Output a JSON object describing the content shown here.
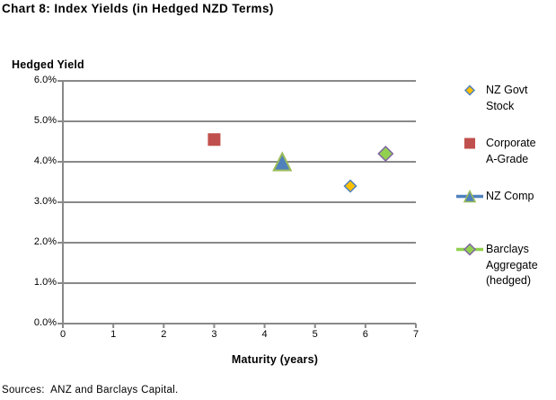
{
  "source_note": "Sources:  ANZ and Barclays Capital.",
  "chart_data": {
    "type": "scatter",
    "title": "Chart 8: Index Yields (in Hedged NZD Terms)",
    "ylabel": "Hedged Yield",
    "xlabel": "Maturity (years)",
    "xlim": [
      0,
      7
    ],
    "ylim": [
      0,
      6
    ],
    "y_units": "percent",
    "xtick_labels": [
      "0",
      "1",
      "2",
      "3",
      "4",
      "5",
      "6",
      "7"
    ],
    "ytick_labels": [
      "0.0%",
      "1.0%",
      "2.0%",
      "3.0%",
      "4.0%",
      "5.0%",
      "6.0%"
    ],
    "grid": "horizontal",
    "legend_position": "right",
    "axis_color": "#898989",
    "series": [
      {
        "name": "NZ Govt Stock",
        "legend_lines": [
          "NZ Govt",
          "Stock"
        ],
        "marker": "diamond",
        "marker_fill": "#FFC000",
        "marker_stroke": "#4F81BD",
        "marker_size": 13,
        "legend_marker_size": 10,
        "show_line": false,
        "line_color": "",
        "points": [
          {
            "maturity_years": 5.7,
            "yield_pct": 3.4
          }
        ]
      },
      {
        "name": "Corporate A-Grade",
        "legend_lines": [
          "Corporate",
          "A-Grade"
        ],
        "marker": "square",
        "marker_fill": "#C0504D",
        "marker_stroke": "#C0504D",
        "marker_size": 13,
        "legend_marker_size": 11,
        "show_line": false,
        "line_color": "",
        "points": [
          {
            "maturity_years": 3.0,
            "yield_pct": 4.55
          }
        ]
      },
      {
        "name": "NZ Comp",
        "legend_lines": [
          "NZ Comp"
        ],
        "marker": "triangle",
        "marker_fill": "#4F81BD",
        "marker_stroke": "#9BBB59",
        "marker_size": 19,
        "legend_marker_size": 12,
        "show_line": true,
        "line_color": "#4F81BD",
        "points": [
          {
            "maturity_years": 4.35,
            "yield_pct": 4.0
          }
        ]
      },
      {
        "name": "Barclays Aggregate (hedged)",
        "legend_lines": [
          "Barclays",
          "Aggregate",
          "(hedged)"
        ],
        "marker": "diamond",
        "marker_fill": "#92D050",
        "marker_stroke": "#8064A2",
        "marker_size": 16,
        "legend_marker_size": 12,
        "show_line": true,
        "line_color": "#92D050",
        "points": [
          {
            "maturity_years": 6.4,
            "yield_pct": 4.2
          }
        ]
      }
    ]
  }
}
